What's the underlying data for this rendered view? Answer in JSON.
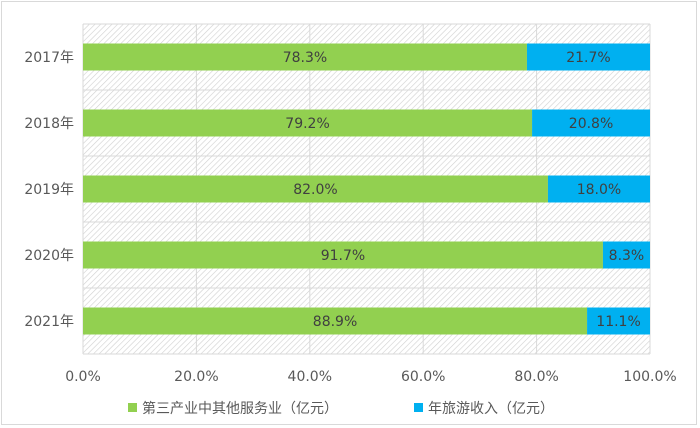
{
  "chart_data": {
    "type": "bar",
    "orientation": "horizontal",
    "stacked": "percent",
    "categories": [
      "2017年",
      "2018年",
      "2019年",
      "2020年",
      "2021年"
    ],
    "series": [
      {
        "name": "第三产业中其他服务业（亿元）",
        "color": "#92d050",
        "values": [
          78.3,
          79.2,
          82.0,
          91.7,
          88.9
        ],
        "labels": [
          "78.3%",
          "79.2%",
          "82.0%",
          "91.7%",
          "88.9%"
        ]
      },
      {
        "name": "年旅游收入（亿元）",
        "color": "#00b0f0",
        "values": [
          21.7,
          20.8,
          18.0,
          8.3,
          11.1
        ],
        "labels": [
          "21.7%",
          "20.8%",
          "18.0%",
          "8.3%",
          "11.1%"
        ]
      }
    ],
    "xlim": [
      0,
      100
    ],
    "xticks": [
      "0.0%",
      "20.0%",
      "40.0%",
      "60.0%",
      "80.0%",
      "100.0%"
    ],
    "grid": true,
    "legend": "bottom"
  }
}
